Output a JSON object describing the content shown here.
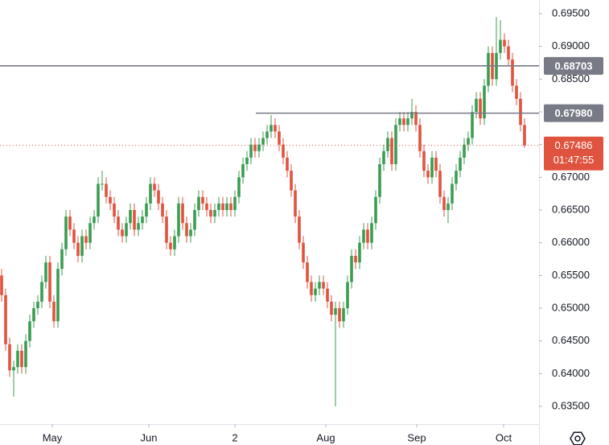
{
  "chart_data": {
    "type": "candlestick",
    "up_color": "#3b9c52",
    "down_color": "#e0533f",
    "ylim": [
      0.635,
      0.695
    ],
    "yticks_top_padding": null,
    "xlim": [
      -0.4,
      133.6
    ],
    "yticks": [
      {
        "value": 0.695,
        "label": "0.69500"
      },
      {
        "value": 0.69,
        "label": "0.69000"
      },
      {
        "value": 0.685,
        "label": "0.68500"
      },
      {
        "value": 0.68,
        "label": "0.68000"
      },
      {
        "value": 0.675,
        "label": "0.67500"
      },
      {
        "value": 0.67,
        "label": "0.67000"
      },
      {
        "value": 0.665,
        "label": "0.66500"
      },
      {
        "value": 0.66,
        "label": "0.66000"
      },
      {
        "value": 0.655,
        "label": "0.65500"
      },
      {
        "value": 0.65,
        "label": "0.65000"
      },
      {
        "value": 0.645,
        "label": "0.64500"
      },
      {
        "value": 0.64,
        "label": "0.64000"
      },
      {
        "value": 0.635,
        "label": "0.63500"
      }
    ],
    "xticks": [
      {
        "value": 12.6,
        "label": "May"
      },
      {
        "value": 36.6,
        "label": "Jun"
      },
      {
        "value": 58,
        "label": "2"
      },
      {
        "value": 80.6,
        "label": "Aug"
      },
      {
        "value": 103.2,
        "label": "Sep"
      },
      {
        "value": 124.8,
        "label": "Oct"
      }
    ],
    "levels": [
      {
        "value": 0.68703,
        "label": "0.68703",
        "start_x": -0.4
      },
      {
        "value": 0.6798,
        "label": "0.67980",
        "start_x": 63.2
      }
    ],
    "last_price": {
      "value": 0.67486,
      "label": "0.67486",
      "countdown": "01:47:55"
    },
    "candles": [
      [
        0.655,
        0.656,
        0.651,
        0.652
      ],
      [
        0.652,
        0.653,
        0.6435,
        0.6445
      ],
      [
        0.6445,
        0.6455,
        0.6395,
        0.6405
      ],
      [
        0.6405,
        0.642,
        0.6365,
        0.641
      ],
      [
        0.641,
        0.6445,
        0.64,
        0.6435
      ],
      [
        0.6435,
        0.6445,
        0.64,
        0.641
      ],
      [
        0.641,
        0.646,
        0.64,
        0.645
      ],
      [
        0.645,
        0.649,
        0.644,
        0.648
      ],
      [
        0.648,
        0.651,
        0.647,
        0.65
      ],
      [
        0.65,
        0.652,
        0.649,
        0.651
      ],
      [
        0.651,
        0.655,
        0.65,
        0.654
      ],
      [
        0.654,
        0.658,
        0.653,
        0.657
      ],
      [
        0.657,
        0.658,
        0.65,
        0.651
      ],
      [
        0.651,
        0.652,
        0.647,
        0.648
      ],
      [
        0.648,
        0.657,
        0.647,
        0.656
      ],
      [
        0.656,
        0.66,
        0.655,
        0.659
      ],
      [
        0.659,
        0.665,
        0.658,
        0.664
      ],
      [
        0.664,
        0.665,
        0.661,
        0.662
      ],
      [
        0.662,
        0.663,
        0.659,
        0.66
      ],
      [
        0.66,
        0.661,
        0.657,
        0.658
      ],
      [
        0.658,
        0.662,
        0.657,
        0.661
      ],
      [
        0.661,
        0.662,
        0.659,
        0.66
      ],
      [
        0.66,
        0.664,
        0.659,
        0.663
      ],
      [
        0.663,
        0.665,
        0.662,
        0.664
      ],
      [
        0.664,
        0.67,
        0.663,
        0.669
      ],
      [
        0.669,
        0.671,
        0.668,
        0.669
      ],
      [
        0.669,
        0.67,
        0.666,
        0.667
      ],
      [
        0.667,
        0.668,
        0.665,
        0.666
      ],
      [
        0.666,
        0.667,
        0.663,
        0.664
      ],
      [
        0.664,
        0.665,
        0.661,
        0.662
      ],
      [
        0.662,
        0.663,
        0.66,
        0.661
      ],
      [
        0.661,
        0.664,
        0.66,
        0.663
      ],
      [
        0.663,
        0.666,
        0.662,
        0.665
      ],
      [
        0.665,
        0.666,
        0.661,
        0.662
      ],
      [
        0.662,
        0.664,
        0.661,
        0.663
      ],
      [
        0.663,
        0.665,
        0.662,
        0.664
      ],
      [
        0.664,
        0.667,
        0.663,
        0.666
      ],
      [
        0.666,
        0.67,
        0.665,
        0.669
      ],
      [
        0.669,
        0.67,
        0.667,
        0.668
      ],
      [
        0.668,
        0.669,
        0.665,
        0.666
      ],
      [
        0.666,
        0.667,
        0.663,
        0.664
      ],
      [
        0.664,
        0.665,
        0.659,
        0.66
      ],
      [
        0.66,
        0.661,
        0.658,
        0.659
      ],
      [
        0.659,
        0.662,
        0.658,
        0.661
      ],
      [
        0.661,
        0.667,
        0.66,
        0.666
      ],
      [
        0.666,
        0.667,
        0.662,
        0.663
      ],
      [
        0.663,
        0.664,
        0.66,
        0.661
      ],
      [
        0.661,
        0.663,
        0.66,
        0.662
      ],
      [
        0.662,
        0.666,
        0.661,
        0.665
      ],
      [
        0.665,
        0.668,
        0.664,
        0.667
      ],
      [
        0.667,
        0.668,
        0.665,
        0.666
      ],
      [
        0.666,
        0.667,
        0.664,
        0.665
      ],
      [
        0.665,
        0.666,
        0.663,
        0.664
      ],
      [
        0.664,
        0.666,
        0.663,
        0.665
      ],
      [
        0.665,
        0.667,
        0.664,
        0.666
      ],
      [
        0.666,
        0.667,
        0.664,
        0.665
      ],
      [
        0.665,
        0.667,
        0.664,
        0.666
      ],
      [
        0.666,
        0.667,
        0.664,
        0.665
      ],
      [
        0.665,
        0.668,
        0.664,
        0.667
      ],
      [
        0.667,
        0.671,
        0.666,
        0.67
      ],
      [
        0.67,
        0.673,
        0.669,
        0.672
      ],
      [
        0.672,
        0.674,
        0.671,
        0.673
      ],
      [
        0.673,
        0.676,
        0.672,
        0.675
      ],
      [
        0.675,
        0.676,
        0.673,
        0.674
      ],
      [
        0.674,
        0.676,
        0.673,
        0.675
      ],
      [
        0.675,
        0.677,
        0.674,
        0.676
      ],
      [
        0.676,
        0.678,
        0.675,
        0.677
      ],
      [
        0.677,
        0.6795,
        0.676,
        0.678
      ],
      [
        0.678,
        0.679,
        0.676,
        0.677
      ],
      [
        0.677,
        0.678,
        0.674,
        0.675
      ],
      [
        0.675,
        0.676,
        0.672,
        0.673
      ],
      [
        0.673,
        0.674,
        0.67,
        0.671
      ],
      [
        0.671,
        0.672,
        0.667,
        0.668
      ],
      [
        0.668,
        0.669,
        0.663,
        0.664
      ],
      [
        0.664,
        0.665,
        0.659,
        0.66
      ],
      [
        0.66,
        0.661,
        0.656,
        0.657
      ],
      [
        0.657,
        0.658,
        0.653,
        0.654
      ],
      [
        0.654,
        0.655,
        0.651,
        0.652
      ],
      [
        0.652,
        0.654,
        0.651,
        0.653
      ],
      [
        0.653,
        0.655,
        0.652,
        0.654
      ],
      [
        0.654,
        0.655,
        0.652,
        0.653
      ],
      [
        0.653,
        0.654,
        0.65,
        0.651
      ],
      [
        0.651,
        0.652,
        0.648,
        0.649
      ],
      [
        0.649,
        0.651,
        0.635,
        0.65
      ],
      [
        0.65,
        0.651,
        0.647,
        0.648
      ],
      [
        0.648,
        0.651,
        0.647,
        0.65
      ],
      [
        0.65,
        0.655,
        0.649,
        0.654
      ],
      [
        0.654,
        0.659,
        0.653,
        0.658
      ],
      [
        0.658,
        0.659,
        0.656,
        0.657
      ],
      [
        0.657,
        0.661,
        0.656,
        0.66
      ],
      [
        0.66,
        0.663,
        0.659,
        0.662
      ],
      [
        0.662,
        0.663,
        0.659,
        0.66
      ],
      [
        0.66,
        0.664,
        0.659,
        0.663
      ],
      [
        0.663,
        0.668,
        0.662,
        0.667
      ],
      [
        0.667,
        0.673,
        0.666,
        0.672
      ],
      [
        0.672,
        0.675,
        0.671,
        0.674
      ],
      [
        0.674,
        0.677,
        0.673,
        0.676
      ],
      [
        0.676,
        0.677,
        0.671,
        0.672
      ],
      [
        0.672,
        0.679,
        0.671,
        0.678
      ],
      [
        0.678,
        0.68,
        0.677,
        0.679
      ],
      [
        0.679,
        0.68,
        0.677,
        0.678
      ],
      [
        0.678,
        0.68,
        0.677,
        0.679
      ],
      [
        0.679,
        0.682,
        0.678,
        0.68
      ],
      [
        0.68,
        0.681,
        0.677,
        0.678
      ],
      [
        0.678,
        0.679,
        0.673,
        0.674
      ],
      [
        0.674,
        0.675,
        0.67,
        0.671
      ],
      [
        0.671,
        0.672,
        0.669,
        0.67
      ],
      [
        0.67,
        0.674,
        0.669,
        0.673
      ],
      [
        0.673,
        0.674,
        0.67,
        0.671
      ],
      [
        0.671,
        0.672,
        0.666,
        0.667
      ],
      [
        0.667,
        0.668,
        0.664,
        0.665
      ],
      [
        0.665,
        0.667,
        0.663,
        0.666
      ],
      [
        0.666,
        0.67,
        0.665,
        0.669
      ],
      [
        0.669,
        0.672,
        0.668,
        0.671
      ],
      [
        0.671,
        0.674,
        0.67,
        0.673
      ],
      [
        0.673,
        0.676,
        0.672,
        0.675
      ],
      [
        0.675,
        0.677,
        0.674,
        0.676
      ],
      [
        0.676,
        0.681,
        0.675,
        0.68
      ],
      [
        0.68,
        0.683,
        0.679,
        0.682
      ],
      [
        0.682,
        0.683,
        0.678,
        0.679
      ],
      [
        0.679,
        0.685,
        0.678,
        0.684
      ],
      [
        0.684,
        0.69,
        0.683,
        0.689
      ],
      [
        0.689,
        0.69,
        0.684,
        0.685
      ],
      [
        0.685,
        0.6945,
        0.684,
        0.689
      ],
      [
        0.689,
        0.694,
        0.688,
        0.691
      ],
      [
        0.691,
        0.692,
        0.689,
        0.69
      ],
      [
        0.69,
        0.691,
        0.687,
        0.688
      ],
      [
        0.688,
        0.689,
        0.683,
        0.684
      ],
      [
        0.684,
        0.685,
        0.681,
        0.682
      ],
      [
        0.682,
        0.683,
        0.677,
        0.678
      ],
      [
        0.678,
        0.679,
        0.6745,
        0.67486
      ]
    ]
  }
}
